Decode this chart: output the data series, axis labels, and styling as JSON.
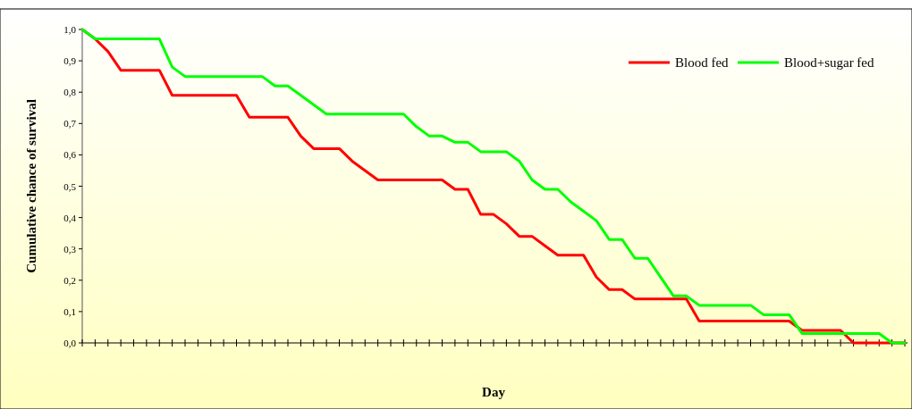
{
  "chart_data": {
    "type": "line",
    "xlabel": "Day",
    "ylabel": "Cumulative chance of survival",
    "categories": [
      null,
      null,
      null,
      null,
      null,
      null,
      null,
      null,
      null,
      null,
      null,
      null,
      null,
      null,
      null,
      null,
      null,
      null,
      null,
      null,
      null,
      null,
      null,
      null,
      null,
      null,
      null,
      null,
      null,
      null,
      null,
      null,
      null,
      null,
      null,
      null,
      null,
      null,
      null,
      null,
      null,
      null,
      null,
      null,
      null,
      null,
      null,
      null,
      null,
      null,
      null,
      null,
      null,
      null,
      null,
      null,
      null,
      null,
      null,
      null,
      null,
      null,
      null,
      null,
      null
    ],
    "series": [
      {
        "name": "Blood fed",
        "color": "#ff0000",
        "values": [
          1.0,
          0.97,
          0.93,
          0.87,
          0.87,
          0.87,
          0.87,
          0.79,
          0.79,
          0.79,
          0.79,
          0.79,
          0.79,
          0.72,
          0.72,
          0.72,
          0.72,
          0.66,
          0.62,
          0.62,
          0.62,
          0.58,
          0.55,
          0.52,
          0.52,
          0.52,
          0.52,
          0.52,
          0.52,
          0.49,
          0.49,
          0.41,
          0.41,
          0.38,
          0.34,
          0.34,
          0.31,
          0.28,
          0.28,
          0.28,
          0.21,
          0.17,
          0.17,
          0.14,
          0.14,
          0.14,
          0.14,
          0.14,
          0.07,
          0.07,
          0.07,
          0.07,
          0.07,
          0.07,
          0.07,
          0.07,
          0.04,
          0.04,
          0.04,
          0.04,
          0,
          0,
          0,
          0,
          0
        ]
      },
      {
        "name": "Blood+sugar fed",
        "color": "#00ff00",
        "values": [
          1.0,
          0.97,
          0.97,
          0.97,
          0.97,
          0.97,
          0.97,
          0.88,
          0.85,
          0.85,
          0.85,
          0.85,
          0.85,
          0.85,
          0.85,
          0.82,
          0.82,
          0.79,
          0.76,
          0.73,
          0.73,
          0.73,
          0.73,
          0.73,
          0.73,
          0.73,
          0.69,
          0.66,
          0.66,
          0.64,
          0.64,
          0.61,
          0.61,
          0.61,
          0.58,
          0.52,
          0.49,
          0.49,
          0.45,
          0.42,
          0.39,
          0.33,
          0.33,
          0.27,
          0.27,
          0.21,
          0.15,
          0.15,
          0.12,
          0.12,
          0.12,
          0.12,
          0.12,
          0.09,
          0.09,
          0.09,
          0.03,
          0.03,
          0.03,
          0.03,
          0.03,
          0.03,
          0.03,
          0,
          0
        ]
      }
    ],
    "ylim": [
      0,
      1.0
    ],
    "yticks": [
      {
        "value": 0,
        "label": "0,0"
      },
      {
        "value": 0.1,
        "label": "0,1"
      },
      {
        "value": 0.2,
        "label": "0,2"
      },
      {
        "value": 0.3,
        "label": "0,3"
      },
      {
        "value": 0.4,
        "label": "0,4"
      },
      {
        "value": 0.5,
        "label": "0,5"
      },
      {
        "value": 0.6,
        "label": "0,6"
      },
      {
        "value": 0.7,
        "label": "0,7"
      },
      {
        "value": 0.8,
        "label": "0,8"
      },
      {
        "value": 0.9,
        "label": "0,9"
      },
      {
        "value": 1.0,
        "label": "1,0"
      }
    ],
    "legend": "top right",
    "grid": false,
    "marker": "none",
    "line_style": "solid"
  }
}
